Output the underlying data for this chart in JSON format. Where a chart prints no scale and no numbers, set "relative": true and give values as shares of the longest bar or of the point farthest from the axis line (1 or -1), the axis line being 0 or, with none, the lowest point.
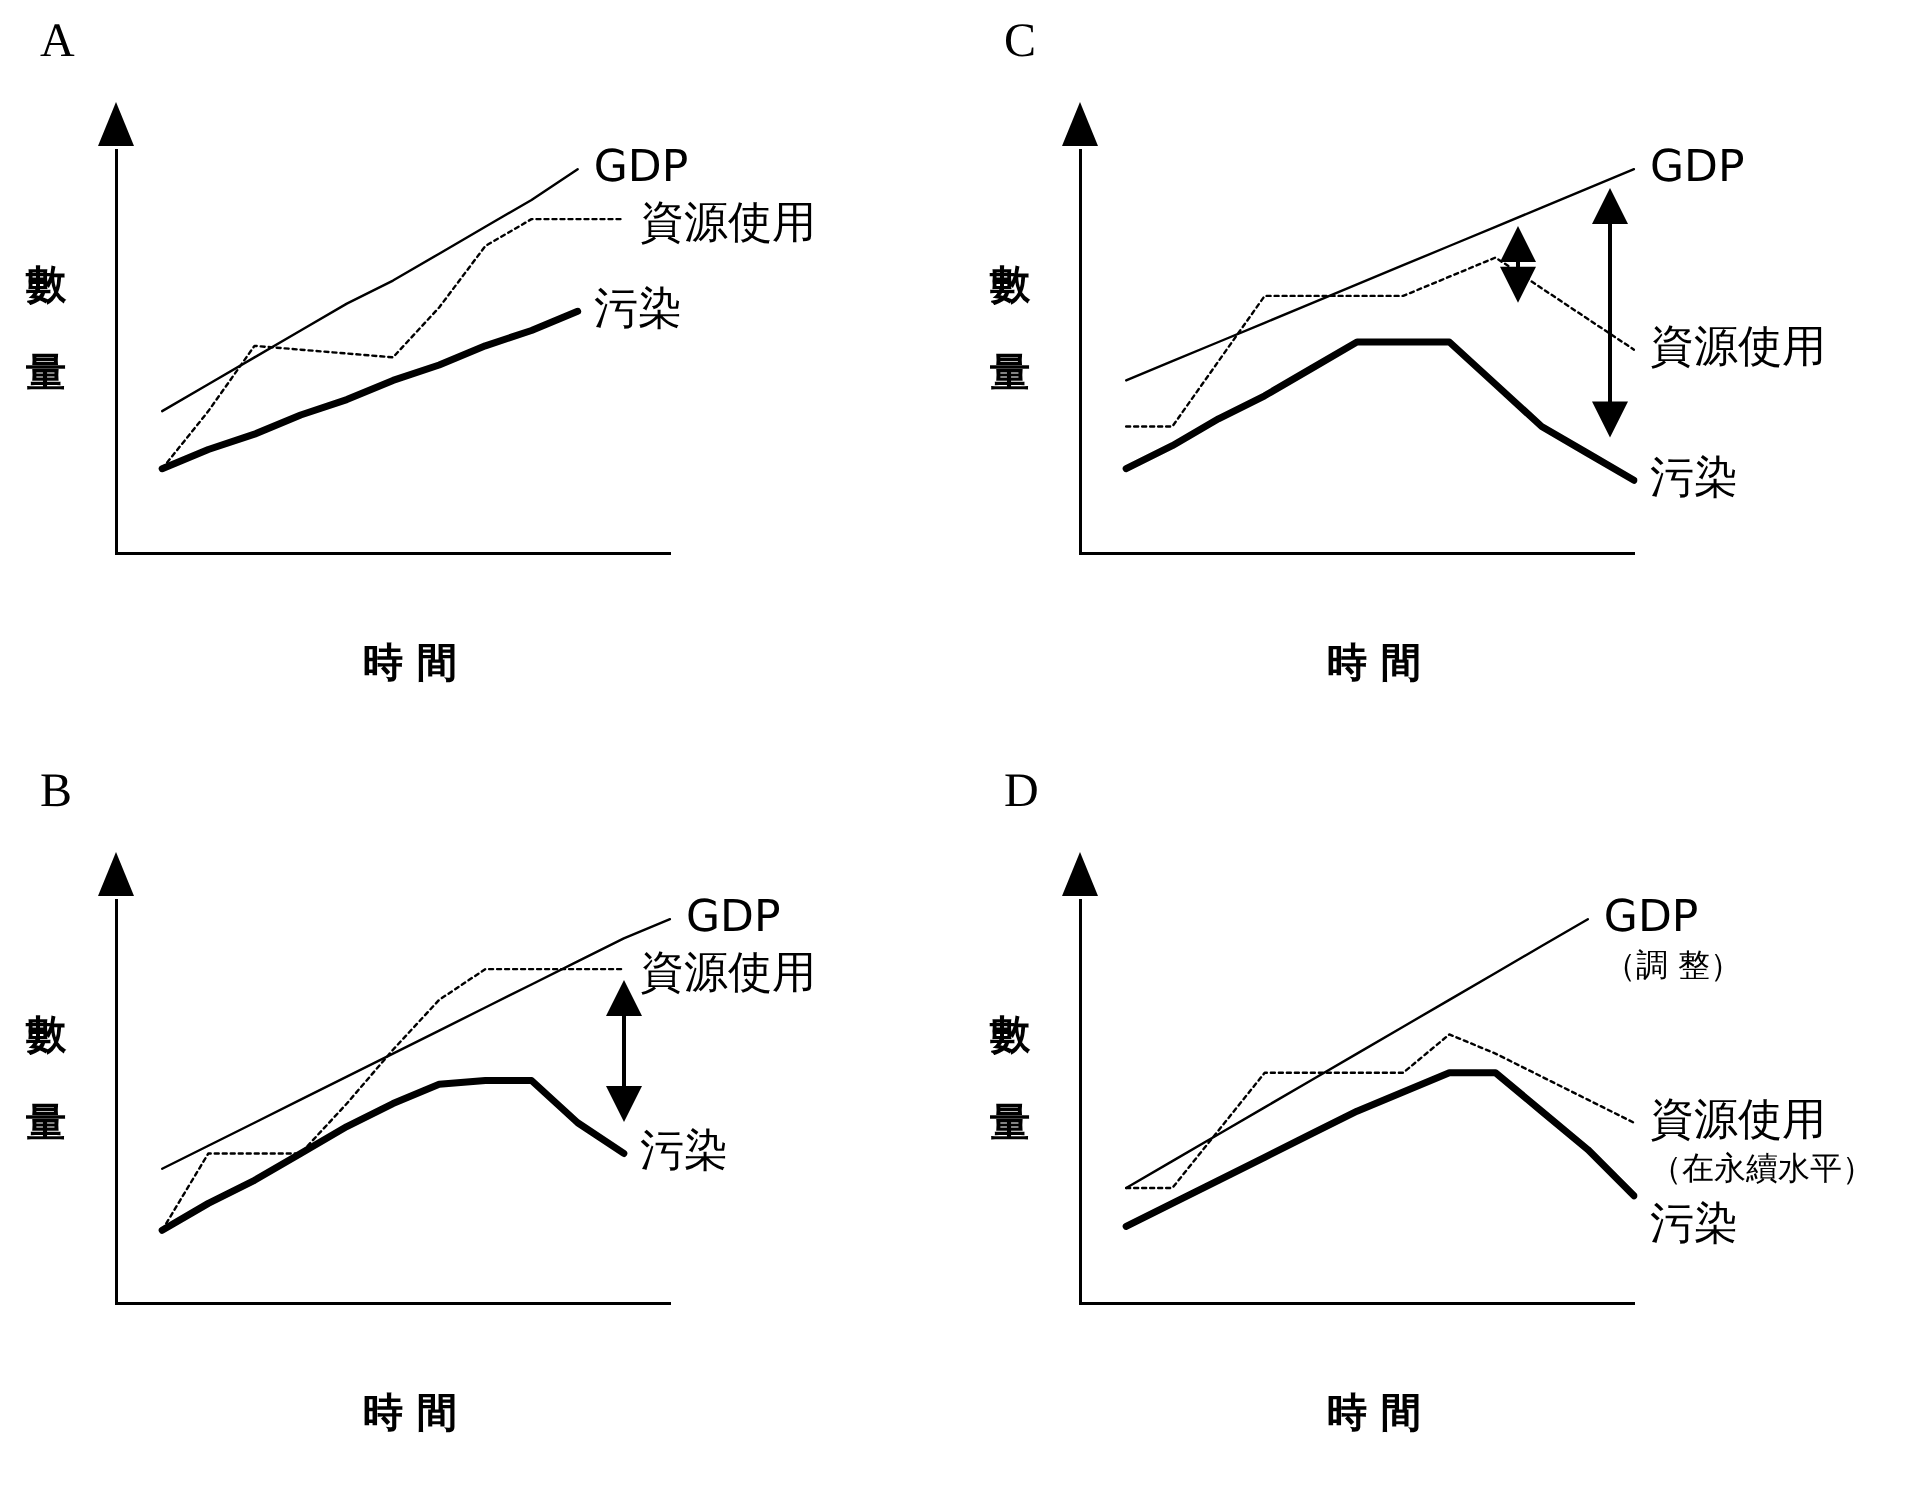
{
  "chart_data": [
    {
      "type": "line",
      "title": "A",
      "xlabel": "時 間",
      "ylabel": "數量",
      "relative": true,
      "categories": [
        null,
        null,
        null,
        null,
        null,
        null,
        null,
        null,
        null,
        null,
        null,
        null,
        null
      ],
      "legend": "right",
      "marker": "none",
      "series": [
        {
          "name": "GDP",
          "color": "#000000",
          "line_style": "solid",
          "values": [
            null,
            0.37,
            0.44,
            0.51,
            0.58,
            0.65,
            0.71,
            0.78,
            0.85,
            0.92,
            1.0,
            null,
            null
          ]
        },
        {
          "name": "資源使用",
          "color": "#000000",
          "line_style": "dotted",
          "values": [
            null,
            0.22,
            0.37,
            0.54,
            0.53,
            0.52,
            0.51,
            0.64,
            0.8,
            0.87,
            0.87,
            0.87,
            null
          ]
        },
        {
          "name": "污染",
          "color": "#000000",
          "line_style": "solid",
          "values": [
            null,
            0.22,
            0.27,
            0.31,
            0.36,
            0.4,
            0.45,
            0.49,
            0.54,
            0.58,
            0.63,
            null,
            null
          ]
        }
      ]
    },
    {
      "type": "line",
      "title": "C",
      "xlabel": "時 間",
      "ylabel": "數量",
      "relative": true,
      "categories": [
        null,
        null,
        null,
        null,
        null,
        null,
        null,
        null,
        null,
        null,
        null,
        null,
        null
      ],
      "legend": "right",
      "marker": "none",
      "series": [
        {
          "name": "GDP",
          "color": "#000000",
          "line_style": "solid",
          "values": [
            null,
            0.45,
            0.5,
            0.55,
            0.6,
            0.65,
            0.7,
            0.75,
            0.8,
            0.85,
            0.9,
            0.95,
            1.0
          ]
        },
        {
          "name": "資源使用",
          "color": "#000000",
          "line_style": "dotted",
          "values": [
            null,
            0.33,
            0.33,
            0.5,
            0.67,
            0.67,
            0.67,
            0.67,
            0.72,
            0.77,
            0.69,
            0.61,
            0.53
          ]
        },
        {
          "name": "污染",
          "color": "#000000",
          "line_style": "solid",
          "values": [
            null,
            0.22,
            0.28,
            0.35,
            0.41,
            0.48,
            0.55,
            0.55,
            0.55,
            0.44,
            0.33,
            0.26,
            0.19
          ]
        }
      ]
    },
    {
      "type": "line",
      "title": "B",
      "xlabel": "時 間",
      "ylabel": "數量",
      "relative": true,
      "categories": [
        null,
        null,
        null,
        null,
        null,
        null,
        null,
        null,
        null,
        null,
        null,
        null,
        null
      ],
      "legend": "right",
      "marker": "none",
      "series": [
        {
          "name": "GDP",
          "color": "#000000",
          "line_style": "solid",
          "values": [
            null,
            0.35,
            0.41,
            0.47,
            0.53,
            0.59,
            0.65,
            0.71,
            0.77,
            0.83,
            0.89,
            0.95,
            1.0
          ]
        },
        {
          "name": "資源使用",
          "color": "#000000",
          "line_style": "dotted",
          "values": [
            null,
            0.19,
            0.39,
            0.39,
            0.39,
            0.52,
            0.66,
            0.79,
            0.87,
            0.87,
            0.87,
            0.87,
            null
          ]
        },
        {
          "name": "污染",
          "color": "#000000",
          "line_style": "solid",
          "values": [
            null,
            0.19,
            0.26,
            0.32,
            0.39,
            0.46,
            0.52,
            0.57,
            0.58,
            0.58,
            0.47,
            0.39,
            null
          ]
        }
      ]
    },
    {
      "type": "line",
      "title": "D",
      "xlabel": "時 間",
      "ylabel": "數量",
      "relative": true,
      "categories": [
        null,
        null,
        null,
        null,
        null,
        null,
        null,
        null,
        null,
        null,
        null,
        null,
        null
      ],
      "legend": "right",
      "marker": "none",
      "series": [
        {
          "name": "GDP（調 整）",
          "color": "#000000",
          "line_style": "solid",
          "values": [
            null,
            0.3,
            0.37,
            0.44,
            0.51,
            0.58,
            0.65,
            0.72,
            0.79,
            0.86,
            0.93,
            1.0,
            null
          ]
        },
        {
          "name": "資源使用（在永續水平）",
          "color": "#000000",
          "line_style": "dotted",
          "values": [
            null,
            0.3,
            0.3,
            0.45,
            0.6,
            0.6,
            0.6,
            0.6,
            0.7,
            0.65,
            0.59,
            0.53,
            0.47
          ]
        },
        {
          "name": "污染",
          "color": "#000000",
          "line_style": "solid",
          "values": [
            null,
            0.2,
            0.26,
            0.32,
            0.38,
            0.44,
            0.5,
            0.55,
            0.6,
            0.6,
            0.5,
            0.4,
            0.28
          ]
        }
      ]
    }
  ]
}
